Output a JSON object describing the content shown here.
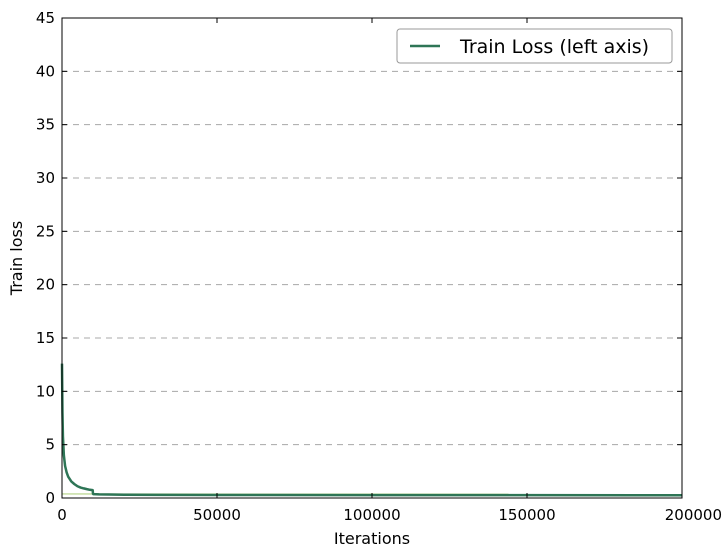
{
  "chart_data": {
    "type": "line",
    "title": "",
    "xlabel": "Iterations",
    "ylabel": "Train loss",
    "xlim": [
      0,
      200000
    ],
    "ylim": [
      0,
      45
    ],
    "xticks": [
      0,
      50000,
      100000,
      150000,
      200000
    ],
    "xtick_labels": [
      "0",
      "50000",
      "100000",
      "150000",
      "200000"
    ],
    "yticks": [
      0,
      5,
      10,
      15,
      20,
      25,
      30,
      35,
      40,
      45
    ],
    "ytick_labels": [
      "0",
      "5",
      "10",
      "15",
      "20",
      "25",
      "30",
      "35",
      "40",
      "45"
    ],
    "grid": "horizontal-dashed",
    "legend": {
      "position": "top-right",
      "entries": [
        "Train Loss (left axis)"
      ]
    },
    "series": [
      {
        "name": "Train Loss (left axis)",
        "color": "#2e7556",
        "x": [
          0,
          150,
          300,
          600,
          1000,
          1500,
          2000,
          3000,
          4000,
          5000,
          6000,
          7000,
          8000,
          9000,
          9900,
          10000,
          10100,
          12000,
          15000,
          20000,
          30000,
          50000,
          100000,
          150000,
          200000
        ],
        "y": [
          12.6,
          8.0,
          5.8,
          4.0,
          3.0,
          2.4,
          2.0,
          1.55,
          1.3,
          1.1,
          0.98,
          0.9,
          0.83,
          0.77,
          0.74,
          0.4,
          0.36,
          0.34,
          0.33,
          0.31,
          0.29,
          0.28,
          0.27,
          0.27,
          0.26
        ]
      },
      {
        "name": "",
        "color": "#b5d486",
        "x": [
          0,
          200000
        ],
        "y": [
          0.38,
          0.35
        ]
      }
    ]
  }
}
